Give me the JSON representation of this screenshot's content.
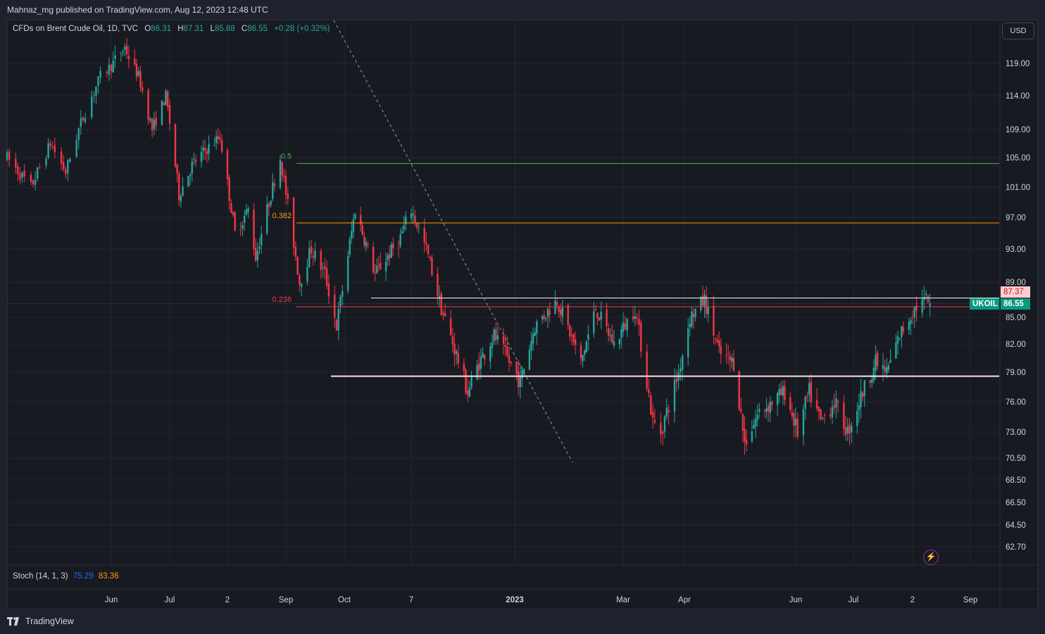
{
  "header": {
    "publisher": "Mahnaz_mg published on TradingView.com, Aug 12, 2023 12:48 UTC"
  },
  "legend": {
    "symbol": "CFDs on Brent Crude Oil, 1D, TVC",
    "open_label": "O",
    "open": "86.31",
    "high_label": "H",
    "high": "87.31",
    "low_label": "L",
    "low": "85.88",
    "close_label": "C",
    "close": "86.55",
    "change": "+0.28 (+0.32%)"
  },
  "currency_button": "USD",
  "price_axis": {
    "ticks": [
      {
        "label": "119.00",
        "price": 119
      },
      {
        "label": "114.00",
        "price": 114
      },
      {
        "label": "109.00",
        "price": 109
      },
      {
        "label": "105.00",
        "price": 105
      },
      {
        "label": "101.00",
        "price": 101
      },
      {
        "label": "97.00",
        "price": 97
      },
      {
        "label": "93.00",
        "price": 93
      },
      {
        "label": "89.00",
        "price": 89
      },
      {
        "label": "85.00",
        "price": 85
      },
      {
        "label": "82.00",
        "price": 82
      },
      {
        "label": "79.00",
        "price": 79
      },
      {
        "label": "76.00",
        "price": 76
      },
      {
        "label": "73.00",
        "price": 73
      },
      {
        "label": "70.50",
        "price": 70.5
      },
      {
        "label": "68.50",
        "price": 68.5
      },
      {
        "label": "66.50",
        "price": 66.5
      },
      {
        "label": "64.50",
        "price": 64.5
      },
      {
        "label": "62.70",
        "price": 62.7
      }
    ],
    "high_tag": "87.37",
    "symbol_tag": "UKOIL",
    "last_tag": "86.55"
  },
  "time_axis": [
    "Jun",
    "Jul",
    "2",
    "Sep",
    "Oct",
    "7",
    "2023",
    "Mar",
    "Apr",
    "Jun",
    "Jul",
    "2",
    "Sep"
  ],
  "fib_levels": [
    {
      "label": "0.5",
      "price": 104.2,
      "color": "#4caf50"
    },
    {
      "label": "0.382",
      "price": 96.3,
      "color": "#ff9800"
    },
    {
      "label": "0.236",
      "price": 86.2,
      "color": "#f23645"
    }
  ],
  "support_line_price": 78.6,
  "resistance_line_price": 87.2,
  "stoch": {
    "label": "Stoch (14, 1, 3)",
    "k": "75.29",
    "d": "83.36"
  },
  "footer": {
    "brand": "TradingView"
  },
  "colors": {
    "up": "#26a69a",
    "down": "#f23645",
    "bg": "#181a22",
    "grid": "#22252e"
  },
  "chart_data": {
    "type": "candlestick",
    "symbol": "UKOIL",
    "anchors": [
      {
        "d": "2022-04-14",
        "p": 105
      },
      {
        "d": "2022-04-25",
        "p": 101
      },
      {
        "d": "2022-05-04",
        "p": 107
      },
      {
        "d": "2022-05-11",
        "p": 103
      },
      {
        "d": "2022-05-18",
        "p": 110
      },
      {
        "d": "2022-05-27",
        "p": 117
      },
      {
        "d": "2022-06-08",
        "p": 121
      },
      {
        "d": "2022-06-15",
        "p": 117
      },
      {
        "d": "2022-06-22",
        "p": 109
      },
      {
        "d": "2022-06-29",
        "p": 114
      },
      {
        "d": "2022-07-06",
        "p": 100
      },
      {
        "d": "2022-07-13",
        "p": 104
      },
      {
        "d": "2022-07-20",
        "p": 106
      },
      {
        "d": "2022-07-28",
        "p": 108
      },
      {
        "d": "2022-08-05",
        "p": 95
      },
      {
        "d": "2022-08-12",
        "p": 98
      },
      {
        "d": "2022-08-16",
        "p": 92
      },
      {
        "d": "2022-08-24",
        "p": 100
      },
      {
        "d": "2022-08-29",
        "p": 105
      },
      {
        "d": "2022-09-08",
        "p": 89
      },
      {
        "d": "2022-09-14",
        "p": 93
      },
      {
        "d": "2022-09-21",
        "p": 90
      },
      {
        "d": "2022-09-27",
        "p": 84
      },
      {
        "d": "2022-10-07",
        "p": 98
      },
      {
        "d": "2022-10-18",
        "p": 90
      },
      {
        "d": "2022-10-31",
        "p": 94
      },
      {
        "d": "2022-11-07",
        "p": 98
      },
      {
        "d": "2022-11-15",
        "p": 93
      },
      {
        "d": "2022-11-23",
        "p": 86
      },
      {
        "d": "2022-12-07",
        "p": 77
      },
      {
        "d": "2022-12-13",
        "p": 80
      },
      {
        "d": "2022-12-21",
        "p": 83
      },
      {
        "d": "2023-01-04",
        "p": 78
      },
      {
        "d": "2023-01-12",
        "p": 84
      },
      {
        "d": "2023-01-24",
        "p": 87
      },
      {
        "d": "2023-02-06",
        "p": 80
      },
      {
        "d": "2023-02-14",
        "p": 86
      },
      {
        "d": "2023-02-24",
        "p": 82
      },
      {
        "d": "2023-03-07",
        "p": 86
      },
      {
        "d": "2023-03-16",
        "p": 74
      },
      {
        "d": "2023-03-20",
        "p": 73
      },
      {
        "d": "2023-03-29",
        "p": 79
      },
      {
        "d": "2023-04-04",
        "p": 85
      },
      {
        "d": "2023-04-12",
        "p": 87
      },
      {
        "d": "2023-04-20",
        "p": 81
      },
      {
        "d": "2023-04-28",
        "p": 80
      },
      {
        "d": "2023-05-04",
        "p": 72
      },
      {
        "d": "2023-05-12",
        "p": 75
      },
      {
        "d": "2023-05-19",
        "p": 76
      },
      {
        "d": "2023-05-26",
        "p": 77
      },
      {
        "d": "2023-06-02",
        "p": 73
      },
      {
        "d": "2023-06-08",
        "p": 77
      },
      {
        "d": "2023-06-14",
        "p": 74
      },
      {
        "d": "2023-06-21",
        "p": 76
      },
      {
        "d": "2023-06-28",
        "p": 73
      },
      {
        "d": "2023-07-06",
        "p": 77
      },
      {
        "d": "2023-07-13",
        "p": 80
      },
      {
        "d": "2023-07-19",
        "p": 79
      },
      {
        "d": "2023-07-26",
        "p": 83
      },
      {
        "d": "2023-08-03",
        "p": 86
      },
      {
        "d": "2023-08-09",
        "p": 87
      },
      {
        "d": "2023-08-11",
        "p": 86.55
      }
    ],
    "last_bar": {
      "open": 86.31,
      "high": 87.31,
      "low": 85.88,
      "close": 86.55
    },
    "price_range": [
      62.7,
      123
    ],
    "date_range": [
      "2022-04-14",
      "2023-09-25"
    ]
  }
}
